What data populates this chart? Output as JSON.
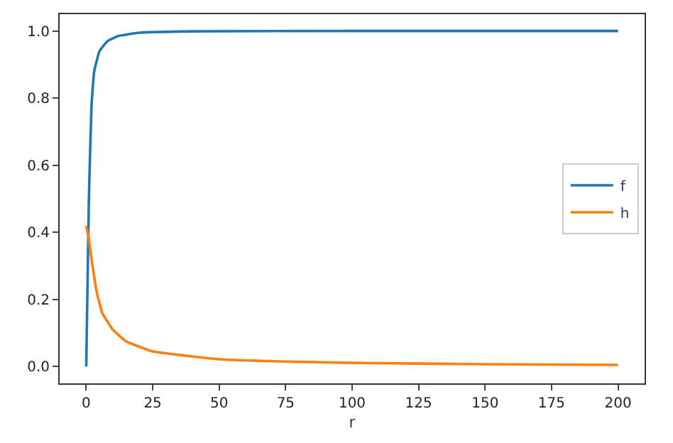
{
  "chart_data": {
    "type": "line",
    "xlabel": "r",
    "xlim": [
      -10,
      210
    ],
    "xticks": [
      0,
      25,
      50,
      75,
      100,
      125,
      150,
      175,
      200
    ],
    "ylim": [
      -0.05,
      1.05
    ],
    "yticks": [
      {
        "value": 0,
        "label": "0.0"
      },
      0.2,
      0.4,
      0.6,
      0.8,
      {
        "value": 1,
        "label": "1.0"
      }
    ],
    "legend": "right",
    "marker": "none",
    "line_style": "solid",
    "series": [
      {
        "name": "f",
        "color": "#1f77b4",
        "x": [
          0,
          1,
          2,
          3,
          5,
          8,
          12,
          20,
          40,
          100,
          200
        ],
        "values": [
          0,
          0.5,
          0.78,
          0.88,
          0.94,
          0.97,
          0.985,
          0.995,
          0.999,
          1.0,
          1.0
        ]
      },
      {
        "name": "h",
        "color": "#ff7f0e",
        "x": [
          0,
          1,
          2,
          4,
          6,
          10,
          15,
          25,
          50,
          75,
          100,
          150,
          200
        ],
        "values": [
          0.42,
          0.38,
          0.32,
          0.22,
          0.16,
          0.11,
          0.075,
          0.045,
          0.022,
          0.015,
          0.011,
          0.007,
          0.005
        ]
      }
    ]
  }
}
